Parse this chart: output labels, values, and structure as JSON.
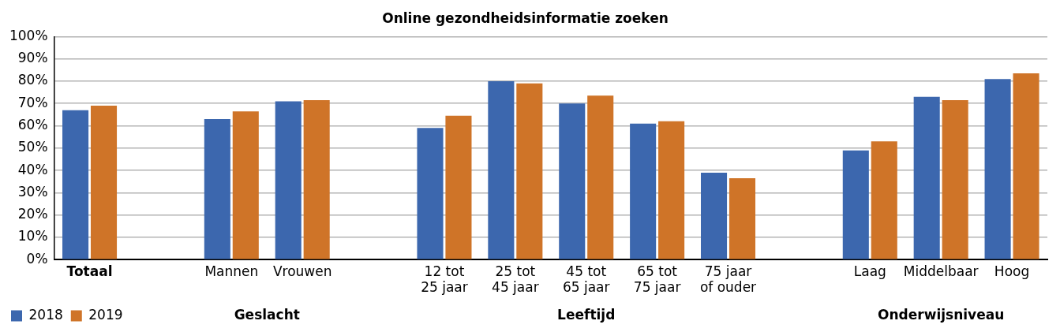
{
  "chart_data": {
    "type": "bar",
    "title": "Online gezondheidsinformatie zoeken",
    "categories": [
      "Totaal",
      null,
      "Mannen",
      "Vrouwen",
      null,
      "12 tot 25 jaar",
      "25 tot 45 jaar",
      "45 tot 65 jaar",
      "65 tot 75 jaar",
      "75 jaar of ouder",
      null,
      "Laag",
      "Middelbaar",
      "Hoog"
    ],
    "series": [
      {
        "name": "2018",
        "color": "#3c67ae",
        "values": [
          67,
          null,
          63,
          71,
          null,
          59,
          80,
          70,
          61,
          39,
          null,
          49,
          73,
          81
        ]
      },
      {
        "name": "2019",
        "color": "#cf7428",
        "values": [
          69,
          null,
          66.5,
          71.5,
          null,
          64.5,
          79,
          73.5,
          62,
          36.5,
          null,
          53,
          71.5,
          83.5
        ]
      }
    ],
    "ylim": [
      0,
      100
    ],
    "yticks": [
      {
        "value": 0,
        "label": "0%"
      },
      {
        "value": 10,
        "label": "10%"
      },
      {
        "value": 20,
        "label": "20%"
      },
      {
        "value": 30,
        "label": "30%"
      },
      {
        "value": 40,
        "label": "40%"
      },
      {
        "value": 50,
        "label": "50%"
      },
      {
        "value": 60,
        "label": "60%"
      },
      {
        "value": 70,
        "label": "70%"
      },
      {
        "value": 80,
        "label": "80%"
      },
      {
        "value": 90,
        "label": "90%"
      },
      {
        "value": 100,
        "label": "100%"
      }
    ],
    "grid": "y",
    "legend": "bottom left",
    "annotations": [
      "Geslacht",
      "Leeftijd",
      "Onderwijsniveau"
    ]
  }
}
